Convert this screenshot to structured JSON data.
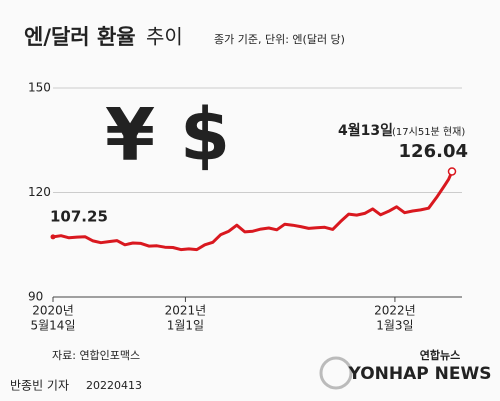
{
  "chart_data": {
    "type": "line",
    "title": "엔/달러 환율",
    "title_suffix": "추이",
    "subtitle": "종가 기준, 단위: 엔(달러 당)",
    "symbols": [
      "¥",
      "$"
    ],
    "annotation_date": "4월13일",
    "annotation_time": "(17시51분 현재)",
    "source": "자료: 연합인포맥스",
    "byline": "반종빈 기자",
    "dateline": "20220413",
    "logo": [
      "연합뉴스",
      "YONHAP NEWS"
    ],
    "color": "#d9181f",
    "grid": true,
    "ylim": [
      90,
      150
    ],
    "yticks": [
      90,
      120,
      150
    ],
    "xlim": [
      "2020-05-14",
      "2022-04-13"
    ],
    "xticks": [
      {
        "value": "2020-05-14",
        "label": [
          "2020년",
          "5월14일"
        ]
      },
      {
        "value": "2021-01-01",
        "label": [
          "2021년",
          "1월1일"
        ]
      },
      {
        "value": "2022-01-03",
        "label": [
          "2022년",
          "1월3일"
        ]
      }
    ],
    "x": [
      "2020-05-14",
      "2020-05-28",
      "2020-06-11",
      "2020-06-25",
      "2020-07-09",
      "2020-07-23",
      "2020-08-06",
      "2020-08-20",
      "2020-09-03",
      "2020-09-17",
      "2020-10-01",
      "2020-10-15",
      "2020-10-29",
      "2020-11-12",
      "2020-11-26",
      "2020-12-10",
      "2020-12-24",
      "2021-01-07",
      "2021-01-21",
      "2021-02-04",
      "2021-02-18",
      "2021-03-04",
      "2021-03-18",
      "2021-04-01",
      "2021-04-15",
      "2021-04-29",
      "2021-05-13",
      "2021-05-27",
      "2021-06-10",
      "2021-06-24",
      "2021-07-08",
      "2021-07-22",
      "2021-08-05",
      "2021-08-19",
      "2021-09-02",
      "2021-09-16",
      "2021-09-30",
      "2021-10-14",
      "2021-10-28",
      "2021-11-11",
      "2021-11-25",
      "2021-12-09",
      "2021-12-23",
      "2022-01-06",
      "2022-01-20",
      "2022-02-03",
      "2022-02-17",
      "2022-03-03",
      "2022-03-17",
      "2022-03-31",
      "2022-04-07",
      "2022-04-13"
    ],
    "values": [
      107.25,
      107.6,
      107.0,
      107.2,
      107.3,
      106.1,
      105.6,
      105.9,
      106.2,
      105.0,
      105.5,
      105.4,
      104.6,
      104.7,
      104.3,
      104.2,
      103.6,
      103.8,
      103.6,
      105.0,
      105.7,
      107.9,
      108.9,
      110.6,
      108.7,
      108.9,
      109.5,
      109.8,
      109.3,
      110.9,
      110.6,
      110.2,
      109.7,
      109.9,
      110.0,
      109.4,
      111.7,
      113.8,
      113.5,
      114.0,
      115.3,
      113.6,
      114.6,
      115.9,
      114.2,
      114.7,
      115.0,
      115.5,
      118.6,
      122.0,
      123.8,
      126.04
    ]
  }
}
